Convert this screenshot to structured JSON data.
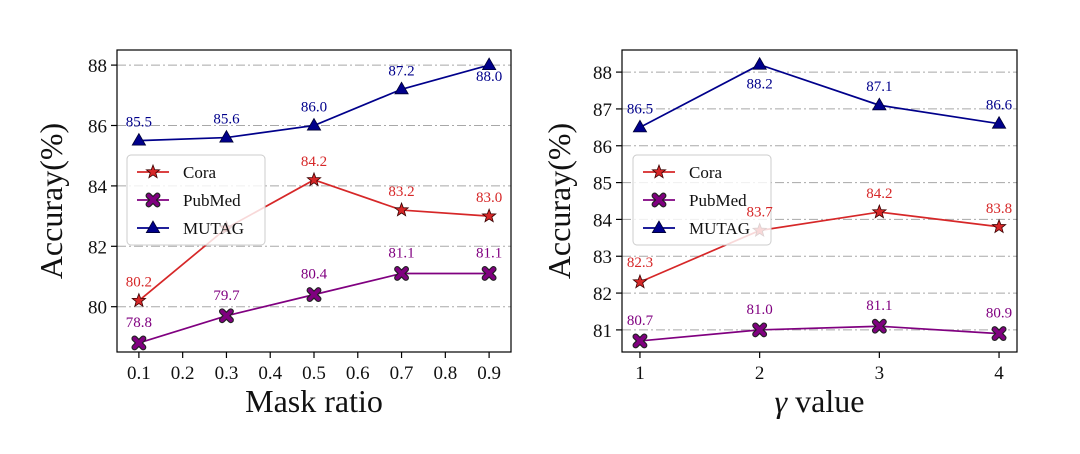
{
  "chart_data": [
    {
      "type": "line",
      "x": [
        0.1,
        0.3,
        0.5,
        0.7,
        0.9
      ],
      "x_ticks": [
        "0.1",
        "0.2",
        "0.3",
        "0.4",
        "0.5",
        "0.6",
        "0.7",
        "0.8",
        "0.9"
      ],
      "x_tick_values": [
        0.1,
        0.2,
        0.3,
        0.4,
        0.5,
        0.6,
        0.7,
        0.8,
        0.9
      ],
      "xlim": [
        0.05,
        0.95
      ],
      "y_ticks": [
        "80",
        "82",
        "84",
        "86",
        "88"
      ],
      "y_tick_values": [
        80,
        82,
        84,
        86,
        88
      ],
      "ylim": [
        78.5,
        88.5
      ],
      "xlabel": "Mask ratio",
      "ylabel": "Accuray(%)",
      "grid": "horizontal dash-dot",
      "legend_position": "center-left",
      "series": [
        {
          "name": "Cora",
          "marker": "star",
          "color": "#d62728",
          "values": [
            80.2,
            82.6,
            84.2,
            83.2,
            83.0
          ],
          "labels": [
            "80.2",
            "",
            "84.2",
            "83.2",
            "83.0"
          ]
        },
        {
          "name": "PubMed",
          "marker": "x",
          "color": "#800080",
          "values": [
            78.8,
            79.7,
            80.4,
            81.1,
            81.1
          ],
          "labels": [
            "78.8",
            "79.7",
            "80.4",
            "81.1",
            "81.1"
          ]
        },
        {
          "name": "MUTAG",
          "marker": "triangle",
          "color": "#00008b",
          "values": [
            85.5,
            85.6,
            86.0,
            87.2,
            88.0
          ],
          "labels": [
            "85.5",
            "85.6",
            "86.0",
            "87.2",
            "88.0"
          ]
        }
      ]
    },
    {
      "type": "line",
      "x": [
        1,
        2,
        3,
        4
      ],
      "x_ticks": [
        "1",
        "2",
        "3",
        "4"
      ],
      "x_tick_values": [
        1,
        2,
        3,
        4
      ],
      "xlim": [
        0.85,
        4.15
      ],
      "y_ticks": [
        "81",
        "82",
        "83",
        "84",
        "85",
        "86",
        "87",
        "88"
      ],
      "y_tick_values": [
        81,
        82,
        83,
        84,
        85,
        86,
        87,
        88
      ],
      "ylim": [
        80.4,
        88.6
      ],
      "xlabel_symbol": "γ",
      "xlabel": "value",
      "ylabel": "Accuray(%)",
      "grid": "horizontal dash-dot",
      "legend_position": "center-left",
      "series": [
        {
          "name": "Cora",
          "marker": "star",
          "color": "#d62728",
          "values": [
            82.3,
            83.7,
            84.2,
            83.8
          ],
          "labels": [
            "82.3",
            "83.7",
            "84.2",
            "83.8"
          ]
        },
        {
          "name": "PubMed",
          "marker": "x",
          "color": "#800080",
          "values": [
            80.7,
            81.0,
            81.1,
            80.9
          ],
          "labels": [
            "80.7",
            "81.0",
            "81.1",
            "80.9"
          ]
        },
        {
          "name": "MUTAG",
          "marker": "triangle",
          "color": "#00008b",
          "values": [
            86.5,
            88.2,
            87.1,
            86.6
          ],
          "labels": [
            "86.5",
            "88.2",
            "87.1",
            "86.6"
          ]
        }
      ]
    }
  ]
}
